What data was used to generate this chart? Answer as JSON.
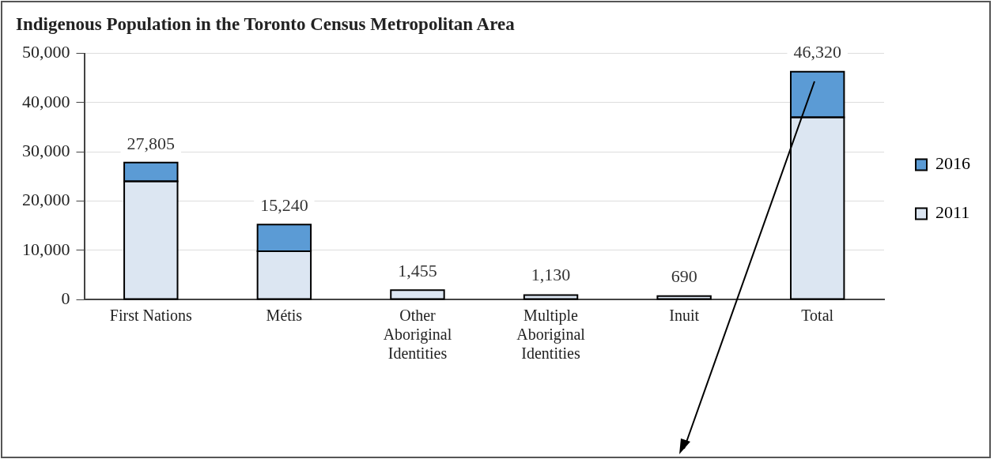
{
  "chart_data": {
    "type": "bar",
    "title": "Indigenous Population in the Toronto Census Metropolitan Area",
    "categories": [
      "First Nations",
      "Métis",
      "Other Aboriginal Identities",
      "Multiple Aboriginal Identities",
      "Inuit",
      "Total"
    ],
    "series": [
      {
        "name": "2011",
        "color": "#dce6f2",
        "values": [
          24000,
          9800,
          1900,
          900,
          700,
          37000
        ]
      },
      {
        "name": "2016",
        "color": "#5b9bd5",
        "values": [
          3800,
          5400,
          0,
          null,
          0,
          9300
        ]
      }
    ],
    "stacked": true,
    "annotations": [
      {
        "text": "27,805",
        "x": "First Nations",
        "y": 27805
      },
      {
        "text": "15,240",
        "x": "Métis",
        "y": 15240
      },
      {
        "text": "1,455",
        "x": "Other Aboriginal Identities",
        "y": 1455
      },
      {
        "text": "1,130",
        "x": "Multiple Aboriginal Identities",
        "y": 1130
      },
      {
        "text": "690",
        "x": "Inuit",
        "y": 690
      },
      {
        "text": "46,320",
        "x": "Total",
        "y": 46320
      }
    ],
    "ylim": [
      0,
      50000
    ],
    "yticks": [
      {
        "value": 0,
        "label": "0"
      },
      {
        "value": 10000,
        "label": "10,000"
      },
      {
        "value": 20000,
        "label": "20,000"
      },
      {
        "value": 30000,
        "label": "30,000"
      },
      {
        "value": 40000,
        "label": "40,000"
      },
      {
        "value": 50000,
        "label": "50,000"
      }
    ],
    "grid": "y",
    "legend": "right"
  }
}
